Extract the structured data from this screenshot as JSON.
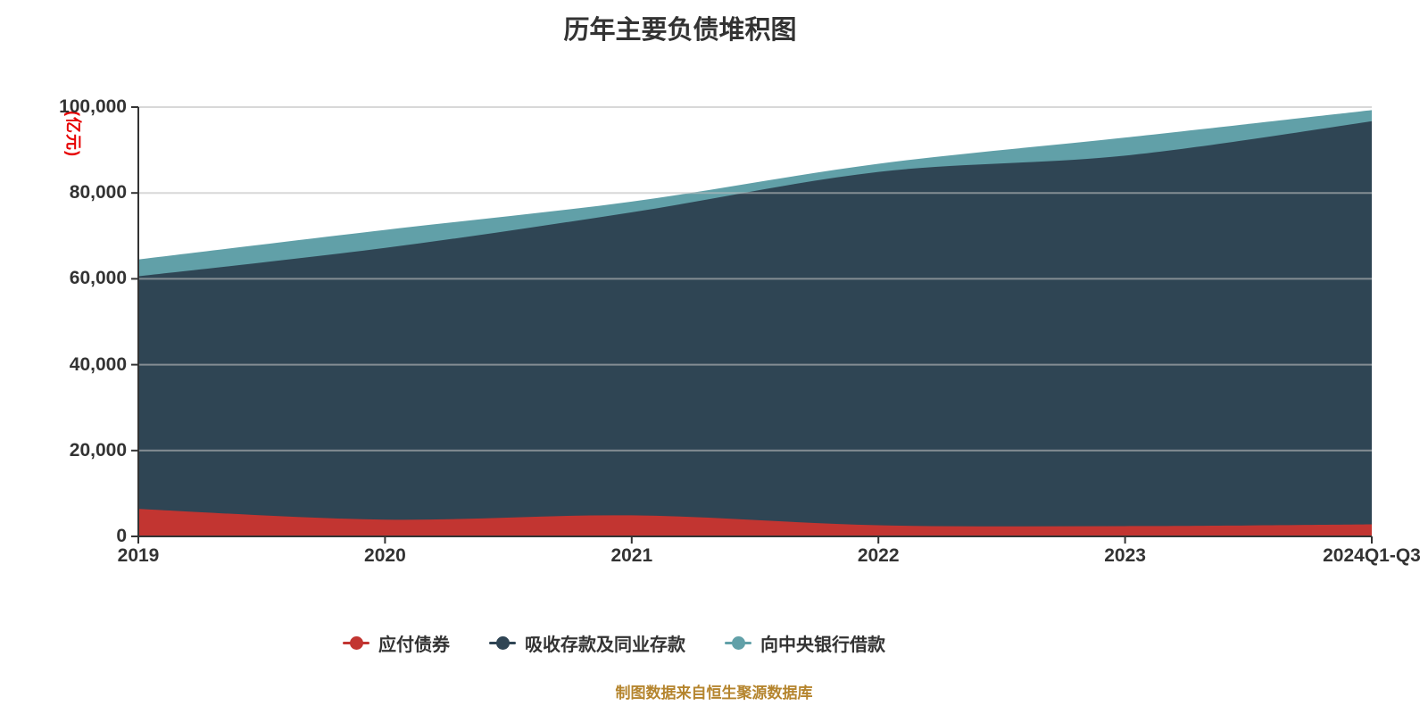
{
  "title": "历年主要负债堆积图",
  "caption": "制图数据来自恒生聚源数据库",
  "y_axis": {
    "unit": "(亿元)",
    "unit_color": "#e60000",
    "labels": [
      "100,000",
      "80,000",
      "60,000",
      "40,000",
      "20,000",
      "0"
    ]
  },
  "x_axis": {
    "labels": [
      "2019",
      "2020",
      "2021",
      "2022",
      "2023",
      "2024Q1-Q3"
    ]
  },
  "legend": {
    "items": [
      {
        "label": "应付债券",
        "color": "#c23531"
      },
      {
        "label": "吸收存款及同业存款",
        "color": "#2f4554"
      },
      {
        "label": "向中央银行借款",
        "color": "#61a0a8"
      }
    ]
  },
  "colors": {
    "axis": "#333333",
    "gridline": "rgba(190,190,190,0.6)",
    "title_text": "#333333",
    "caption_text": "#b5852e"
  },
  "chart_data": {
    "type": "area",
    "stacked": true,
    "smooth": true,
    "title": "历年主要负债堆积图",
    "ylabel": "(亿元)",
    "xlabel": "",
    "ylim": [
      0,
      100000
    ],
    "y_ticks": [
      0,
      20000,
      40000,
      60000,
      80000,
      100000
    ],
    "grid": true,
    "legend_position": "bottom",
    "categories": [
      "2019",
      "2020",
      "2021",
      "2022",
      "2023",
      "2024Q1-Q3"
    ],
    "series": [
      {
        "name": "应付债券",
        "color": "#c23531",
        "values": [
          6400,
          3900,
          4900,
          2600,
          2400,
          2800
        ]
      },
      {
        "name": "吸收存款及同业存款",
        "color": "#2f4554",
        "values": [
          54200,
          63300,
          70600,
          82300,
          86300,
          93900
        ]
      },
      {
        "name": "向中央银行借款",
        "color": "#61a0a8",
        "values": [
          3900,
          4200,
          2500,
          1900,
          4200,
          2600
        ]
      }
    ],
    "stacked_totals": [
      64500,
      71400,
      78000,
      86800,
      92900,
      99300
    ]
  }
}
